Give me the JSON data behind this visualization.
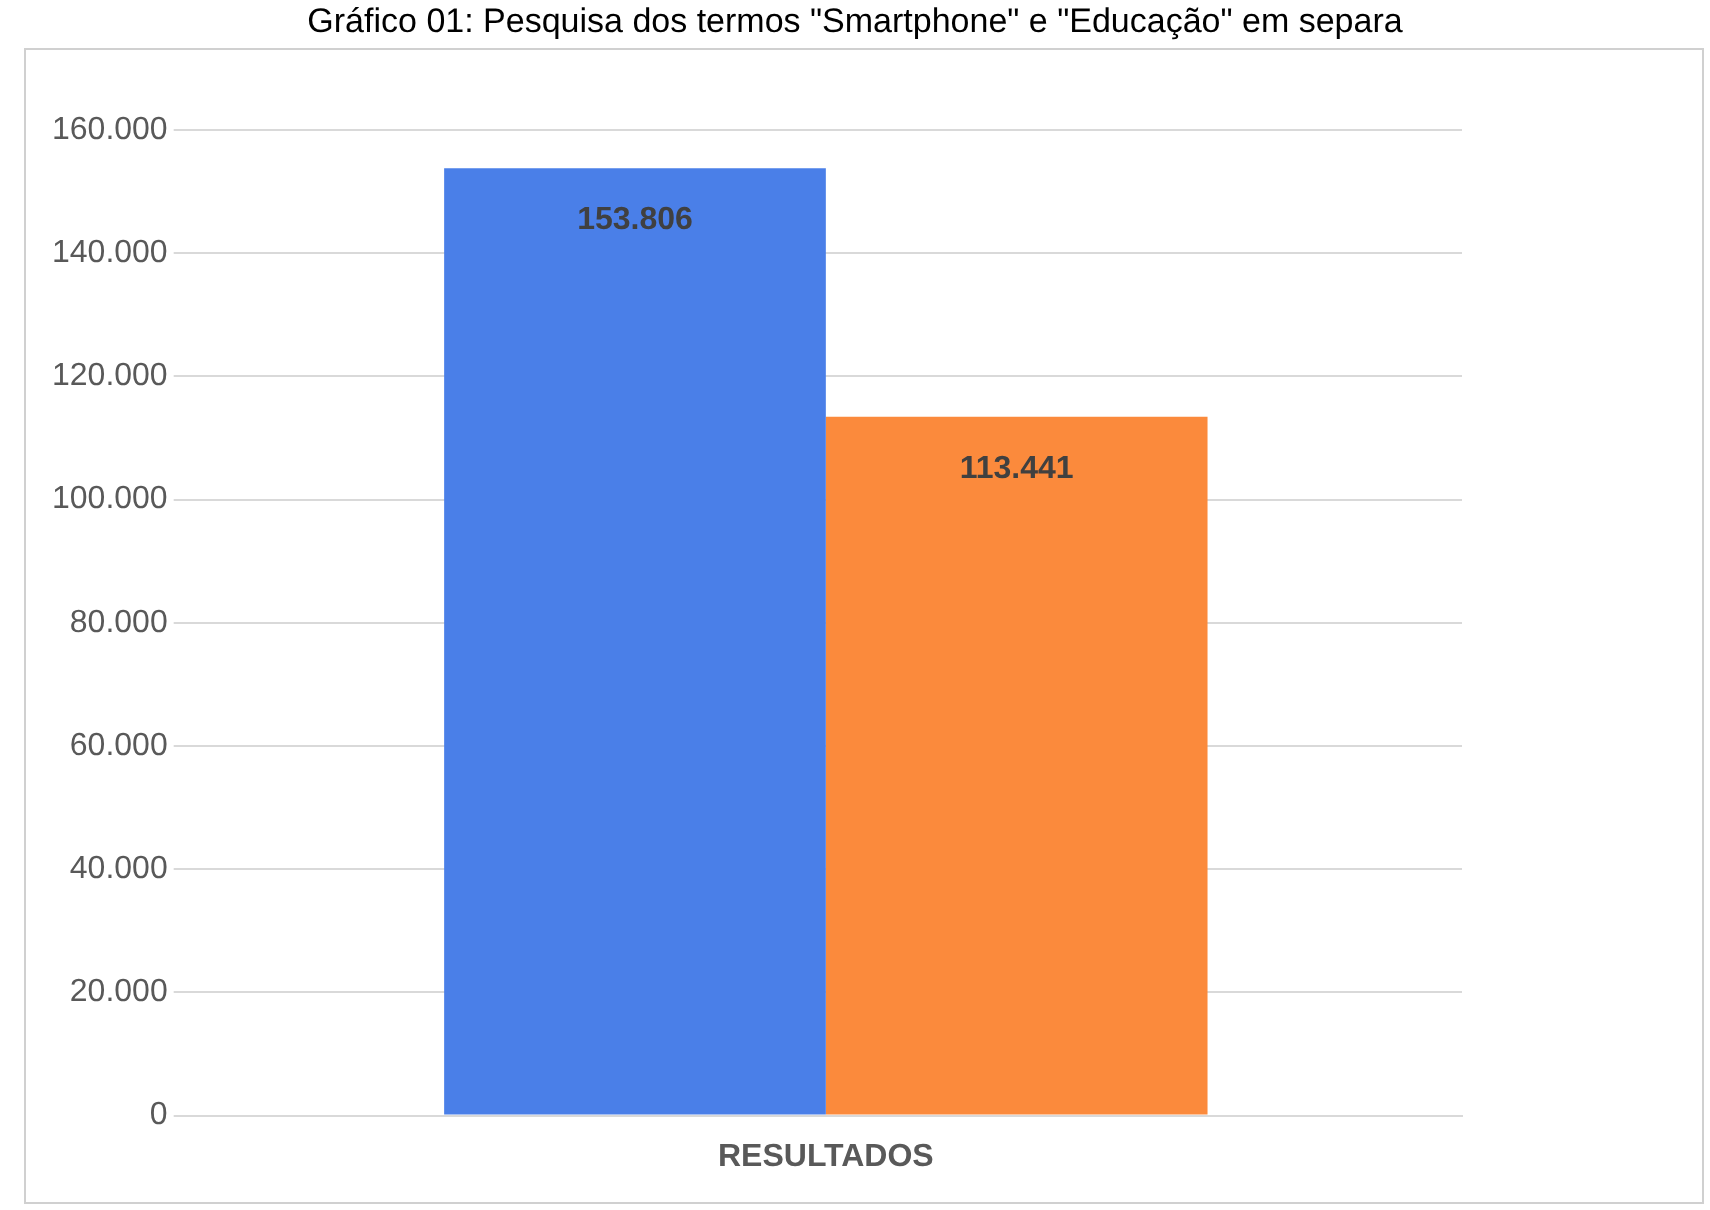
{
  "chart_data": {
    "type": "bar",
    "title": "Gráfico 01: Pesquisa dos termos \"Smartphone\" e \"Educação\" em separa",
    "categories": [
      "RESULTADOS"
    ],
    "series": [
      {
        "color": "#4a7fe8",
        "values": [
          153806
        ],
        "value_labels": [
          "153.806"
        ]
      },
      {
        "color": "#fb8a3c",
        "values": [
          113441
        ],
        "value_labels": [
          "113.441"
        ]
      }
    ],
    "ylim": [
      0,
      160000
    ],
    "yticks": [
      {
        "value": 0,
        "label": "0"
      },
      {
        "value": 20000,
        "label": "20.000"
      },
      {
        "value": 40000,
        "label": "40.000"
      },
      {
        "value": 60000,
        "label": "60.000"
      },
      {
        "value": 80000,
        "label": "80.000"
      },
      {
        "value": 100000,
        "label": "100.000"
      },
      {
        "value": 120000,
        "label": "120.000"
      },
      {
        "value": 140000,
        "label": "140.000"
      },
      {
        "value": 160000,
        "label": "160.000"
      }
    ],
    "grid": "y",
    "legend": false
  }
}
